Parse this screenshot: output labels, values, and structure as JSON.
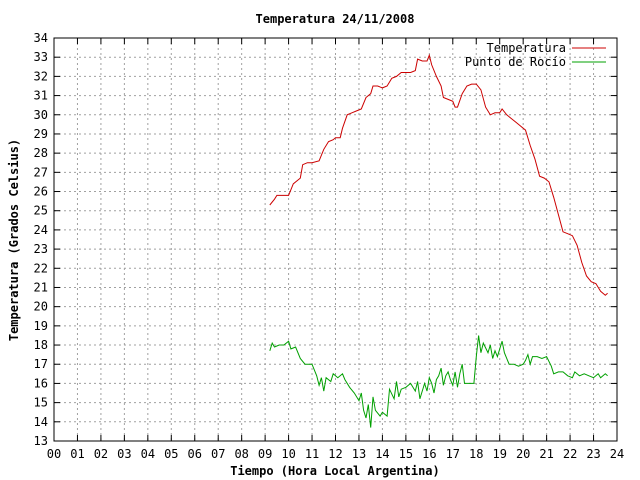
{
  "chart_data": {
    "type": "line",
    "title": "Temperatura 24/11/2008",
    "xlabel": "Tiempo (Hora Local Argentina)",
    "ylabel": "Temperatura (Grados Celsius)",
    "xlim": [
      0,
      24
    ],
    "ylim": [
      13,
      34
    ],
    "grid": true,
    "legend_position": "top-right",
    "x_ticks": [
      "00",
      "01",
      "02",
      "03",
      "04",
      "05",
      "06",
      "07",
      "08",
      "09",
      "10",
      "11",
      "12",
      "13",
      "14",
      "15",
      "16",
      "17",
      "18",
      "19",
      "20",
      "21",
      "22",
      "23",
      "24"
    ],
    "y_ticks": [
      13,
      14,
      15,
      16,
      17,
      18,
      19,
      20,
      21,
      22,
      23,
      24,
      25,
      26,
      27,
      28,
      29,
      30,
      31,
      32,
      33,
      34
    ],
    "series": [
      {
        "name": "Temperatura",
        "color": "#cc0000",
        "points": [
          [
            9.2,
            25.3
          ],
          [
            9.4,
            25.6
          ],
          [
            9.5,
            25.8
          ],
          [
            9.8,
            25.8
          ],
          [
            10.0,
            25.8
          ],
          [
            10.2,
            26.4
          ],
          [
            10.4,
            26.6
          ],
          [
            10.5,
            26.7
          ],
          [
            10.6,
            27.4
          ],
          [
            10.8,
            27.5
          ],
          [
            11.0,
            27.5
          ],
          [
            11.3,
            27.6
          ],
          [
            11.5,
            28.2
          ],
          [
            11.7,
            28.6
          ],
          [
            11.9,
            28.7
          ],
          [
            12.0,
            28.8
          ],
          [
            12.2,
            28.8
          ],
          [
            12.3,
            29.3
          ],
          [
            12.5,
            30.0
          ],
          [
            12.7,
            30.1
          ],
          [
            12.9,
            30.2
          ],
          [
            13.1,
            30.3
          ],
          [
            13.3,
            30.9
          ],
          [
            13.5,
            31.1
          ],
          [
            13.6,
            31.5
          ],
          [
            13.8,
            31.5
          ],
          [
            14.0,
            31.4
          ],
          [
            14.2,
            31.5
          ],
          [
            14.4,
            31.9
          ],
          [
            14.6,
            32.0
          ],
          [
            14.8,
            32.2
          ],
          [
            15.0,
            32.2
          ],
          [
            15.2,
            32.2
          ],
          [
            15.4,
            32.3
          ],
          [
            15.5,
            32.9
          ],
          [
            15.7,
            32.8
          ],
          [
            15.9,
            32.8
          ],
          [
            16.0,
            33.1
          ],
          [
            16.1,
            32.6
          ],
          [
            16.3,
            32.0
          ],
          [
            16.5,
            31.5
          ],
          [
            16.6,
            30.9
          ],
          [
            16.8,
            30.8
          ],
          [
            17.0,
            30.7
          ],
          [
            17.1,
            30.4
          ],
          [
            17.2,
            30.4
          ],
          [
            17.4,
            31.1
          ],
          [
            17.6,
            31.5
          ],
          [
            17.8,
            31.6
          ],
          [
            18.0,
            31.6
          ],
          [
            18.2,
            31.3
          ],
          [
            18.4,
            30.4
          ],
          [
            18.6,
            30.0
          ],
          [
            18.8,
            30.1
          ],
          [
            19.0,
            30.1
          ],
          [
            19.1,
            30.3
          ],
          [
            19.3,
            30.0
          ],
          [
            19.5,
            29.8
          ],
          [
            19.7,
            29.6
          ],
          [
            19.9,
            29.4
          ],
          [
            20.1,
            29.2
          ],
          [
            20.3,
            28.4
          ],
          [
            20.5,
            27.7
          ],
          [
            20.7,
            26.8
          ],
          [
            20.9,
            26.7
          ],
          [
            21.1,
            26.5
          ],
          [
            21.3,
            25.7
          ],
          [
            21.5,
            24.8
          ],
          [
            21.7,
            23.9
          ],
          [
            21.9,
            23.8
          ],
          [
            22.1,
            23.7
          ],
          [
            22.3,
            23.2
          ],
          [
            22.5,
            22.3
          ],
          [
            22.7,
            21.6
          ],
          [
            22.9,
            21.3
          ],
          [
            23.1,
            21.2
          ],
          [
            23.3,
            20.8
          ],
          [
            23.5,
            20.6
          ],
          [
            23.6,
            20.7
          ]
        ]
      },
      {
        "name": "Punto de Rocío",
        "color": "#00a000",
        "points": [
          [
            9.2,
            17.7
          ],
          [
            9.3,
            18.1
          ],
          [
            9.4,
            17.9
          ],
          [
            9.6,
            18.0
          ],
          [
            9.8,
            18.0
          ],
          [
            10.0,
            18.2
          ],
          [
            10.1,
            17.8
          ],
          [
            10.3,
            17.9
          ],
          [
            10.5,
            17.3
          ],
          [
            10.7,
            17.0
          ],
          [
            11.0,
            17.0
          ],
          [
            11.2,
            16.4
          ],
          [
            11.3,
            15.9
          ],
          [
            11.4,
            16.3
          ],
          [
            11.5,
            15.6
          ],
          [
            11.6,
            16.3
          ],
          [
            11.8,
            16.1
          ],
          [
            11.9,
            16.5
          ],
          [
            12.1,
            16.3
          ],
          [
            12.3,
            16.5
          ],
          [
            12.4,
            16.2
          ],
          [
            12.6,
            15.8
          ],
          [
            12.8,
            15.5
          ],
          [
            13.0,
            15.1
          ],
          [
            13.1,
            15.5
          ],
          [
            13.2,
            14.6
          ],
          [
            13.3,
            14.2
          ],
          [
            13.4,
            14.9
          ],
          [
            13.5,
            13.7
          ],
          [
            13.6,
            15.3
          ],
          [
            13.7,
            14.6
          ],
          [
            13.9,
            14.3
          ],
          [
            14.0,
            14.5
          ],
          [
            14.2,
            14.3
          ],
          [
            14.3,
            15.7
          ],
          [
            14.5,
            15.2
          ],
          [
            14.6,
            16.1
          ],
          [
            14.7,
            15.3
          ],
          [
            14.8,
            15.7
          ],
          [
            15.0,
            15.8
          ],
          [
            15.2,
            16.0
          ],
          [
            15.4,
            15.6
          ],
          [
            15.5,
            16.1
          ],
          [
            15.6,
            15.2
          ],
          [
            15.8,
            16.0
          ],
          [
            15.9,
            15.6
          ],
          [
            16.0,
            16.3
          ],
          [
            16.1,
            16.0
          ],
          [
            16.2,
            15.5
          ],
          [
            16.3,
            16.2
          ],
          [
            16.4,
            16.4
          ],
          [
            16.5,
            16.8
          ],
          [
            16.6,
            15.9
          ],
          [
            16.7,
            16.4
          ],
          [
            16.8,
            16.6
          ],
          [
            16.9,
            16.2
          ],
          [
            17.0,
            15.9
          ],
          [
            17.1,
            16.6
          ],
          [
            17.2,
            15.8
          ],
          [
            17.3,
            16.5
          ],
          [
            17.4,
            17.0
          ],
          [
            17.5,
            16.0
          ],
          [
            17.7,
            16.0
          ],
          [
            17.9,
            16.0
          ],
          [
            18.0,
            17.4
          ],
          [
            18.1,
            18.5
          ],
          [
            18.2,
            17.6
          ],
          [
            18.3,
            18.1
          ],
          [
            18.5,
            17.6
          ],
          [
            18.6,
            18.0
          ],
          [
            18.7,
            17.3
          ],
          [
            18.8,
            17.7
          ],
          [
            18.9,
            17.4
          ],
          [
            19.1,
            18.2
          ],
          [
            19.2,
            17.6
          ],
          [
            19.4,
            17.0
          ],
          [
            19.6,
            17.0
          ],
          [
            19.8,
            16.9
          ],
          [
            20.0,
            17.0
          ],
          [
            20.1,
            17.2
          ],
          [
            20.2,
            17.5
          ],
          [
            20.3,
            17.0
          ],
          [
            20.4,
            17.4
          ],
          [
            20.6,
            17.4
          ],
          [
            20.8,
            17.3
          ],
          [
            21.0,
            17.4
          ],
          [
            21.2,
            16.9
          ],
          [
            21.3,
            16.5
          ],
          [
            21.5,
            16.6
          ],
          [
            21.7,
            16.6
          ],
          [
            21.9,
            16.4
          ],
          [
            22.1,
            16.3
          ],
          [
            22.2,
            16.6
          ],
          [
            22.4,
            16.4
          ],
          [
            22.6,
            16.5
          ],
          [
            22.8,
            16.4
          ],
          [
            23.0,
            16.3
          ],
          [
            23.2,
            16.5
          ],
          [
            23.3,
            16.3
          ],
          [
            23.5,
            16.5
          ],
          [
            23.6,
            16.4
          ]
        ]
      }
    ]
  }
}
